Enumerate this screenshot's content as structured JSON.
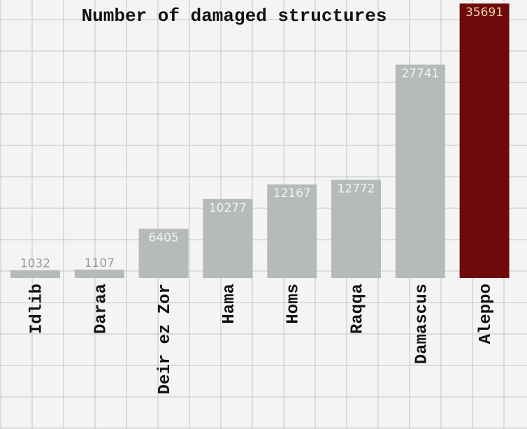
{
  "chart_data": {
    "type": "bar",
    "title": "Number of damaged structures",
    "categories": [
      "Idlib",
      "Daraa",
      "Deir ez Zor",
      "Hama",
      "Homs",
      "Raqqa",
      "Damascus",
      "Aleppo"
    ],
    "values": [
      1032,
      1107,
      6405,
      10277,
      12167,
      12772,
      27741,
      35691
    ],
    "colors": [
      "#b5babb",
      "#b5babb",
      "#b5babb",
      "#b5babb",
      "#b5babb",
      "#b5babb",
      "#b5babb",
      "#6e0a0c"
    ]
  }
}
